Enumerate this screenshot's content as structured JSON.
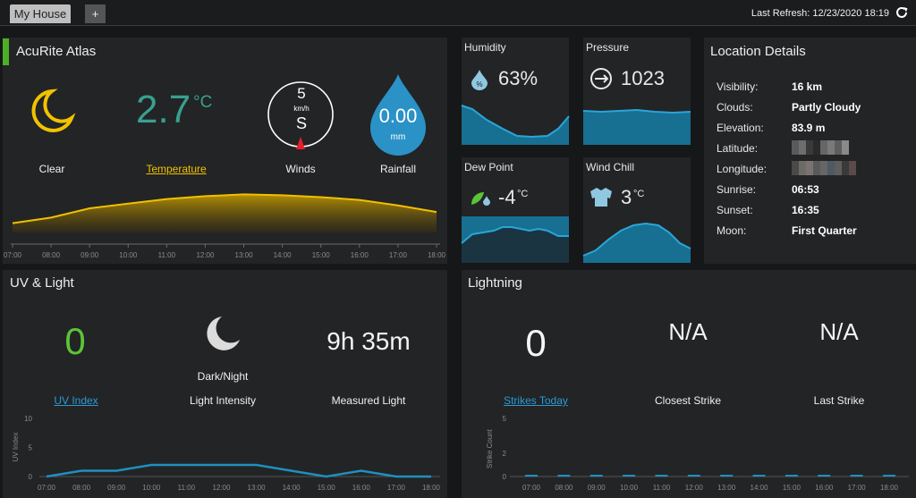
{
  "topbar": {
    "tab_label": "My House",
    "add_label": "+",
    "last_refresh": "Last Refresh: 12/23/2020 18:19"
  },
  "atlas": {
    "title": "AcuRite Atlas",
    "condition": "Clear",
    "temperature": {
      "value": "2.7",
      "unit": "°C",
      "label": "Temperature"
    },
    "wind": {
      "speed": "5",
      "unit": "km/h",
      "direction": "S",
      "label": "Winds"
    },
    "rain": {
      "value": "0.00",
      "unit": "mm",
      "label": "Rainfall"
    },
    "accent": "#4caf28"
  },
  "humidity": {
    "title": "Humidity",
    "value": "63%"
  },
  "pressure": {
    "title": "Pressure",
    "value": "1023"
  },
  "dewpoint": {
    "title": "Dew Point",
    "value": "-4",
    "unit": "°C"
  },
  "windchill": {
    "title": "Wind Chill",
    "value": "3",
    "unit": "°C"
  },
  "location": {
    "title": "Location Details",
    "rows": [
      {
        "label": "Visibility:",
        "value": "16 km"
      },
      {
        "label": "Clouds:",
        "value": "Partly Cloudy"
      },
      {
        "label": "Elevation:",
        "value": "83.9 m"
      },
      {
        "label": "Latitude:",
        "value": ""
      },
      {
        "label": "Longitude:",
        "value": ""
      },
      {
        "label": "Sunrise:",
        "value": "06:53"
      },
      {
        "label": "Sunset:",
        "value": "16:35"
      },
      {
        "label": "Moon:",
        "value": "First Quarter"
      }
    ]
  },
  "uv": {
    "title": "UV & Light",
    "uv_value": "0",
    "uv_label": "UV Index",
    "light_state": "Dark/Night",
    "light_label": "Light Intensity",
    "measured": "9h 35m",
    "measured_label": "Measured Light"
  },
  "lightning": {
    "title": "Lightning",
    "strikes": "0",
    "strikes_label": "Strikes Today",
    "closest": "N/A",
    "closest_label": "Closest Strike",
    "last": "N/A",
    "last_label": "Last Strike"
  },
  "colors": {
    "temp_line": "#f0c000",
    "blue": "#1f8fbf",
    "green_value": "#5cc436",
    "teal_temp": "#38a08f"
  },
  "chart_data": [
    {
      "type": "area",
      "name": "temperature-trend",
      "x": [
        "07:00",
        "08:00",
        "09:00",
        "10:00",
        "11:00",
        "12:00",
        "13:00",
        "14:00",
        "15:00",
        "16:00",
        "17:00",
        "18:00"
      ],
      "values": [
        1.0,
        1.6,
        2.6,
        3.1,
        3.6,
        3.9,
        4.1,
        4.0,
        3.8,
        3.5,
        2.9,
        2.2
      ],
      "ylim": [
        0,
        5
      ]
    },
    {
      "type": "line",
      "name": "uv-index-trend",
      "ylabel": "UV Index",
      "yticks": [
        "0",
        "5",
        "10"
      ],
      "x": [
        "07:00",
        "08:00",
        "09:00",
        "10:00",
        "11:00",
        "12:00",
        "13:00",
        "14:00",
        "15:00",
        "16:00",
        "17:00",
        "18:00"
      ],
      "values": [
        0,
        1,
        1,
        2,
        2,
        2,
        2,
        1,
        0,
        1,
        0,
        0
      ],
      "ylim": [
        0,
        10
      ]
    },
    {
      "type": "bar",
      "name": "strike-count",
      "ylabel": "Strike Count",
      "yticks": [
        "0",
        "2",
        "5"
      ],
      "x": [
        "07:00",
        "08:00",
        "09:00",
        "10:00",
        "11:00",
        "12:00",
        "13:00",
        "14:00",
        "15:00",
        "16:00",
        "17:00",
        "18:00"
      ],
      "values": [
        0,
        0,
        0,
        0,
        0,
        0,
        0,
        0,
        0,
        0,
        0,
        0
      ],
      "ylim": [
        0,
        5
      ]
    }
  ]
}
